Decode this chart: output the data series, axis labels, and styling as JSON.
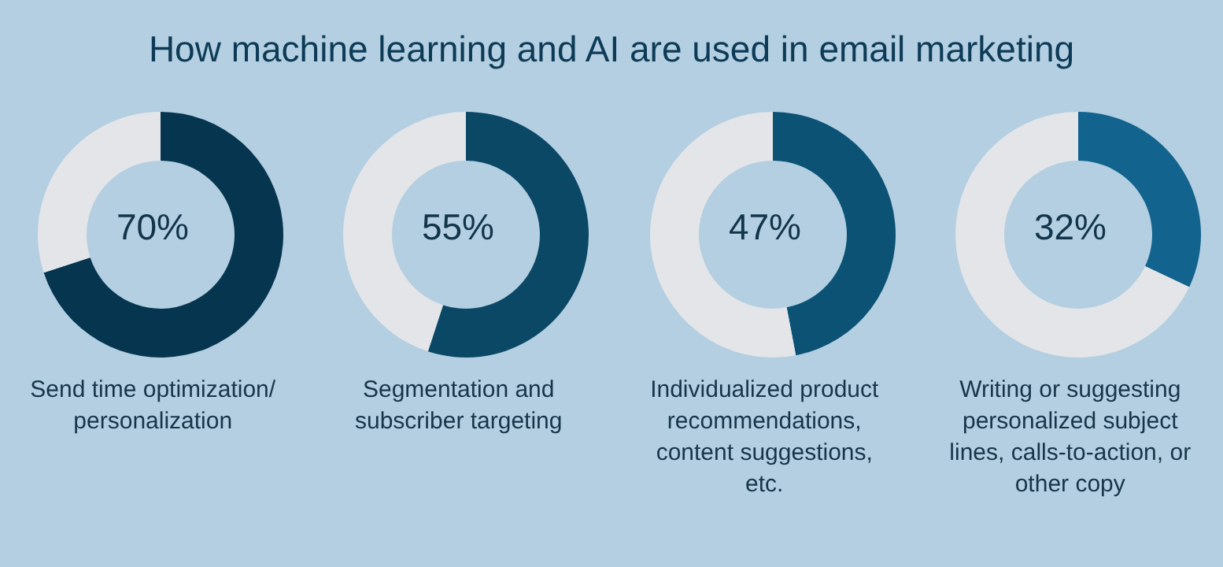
{
  "chart_data": [
    {
      "type": "other",
      "title": "How machine learning and AI are used in email marketing"
    },
    {
      "type": "donut",
      "categories": [
        null,
        null
      ],
      "values": [
        70,
        30
      ],
      "colors": [
        "#06354f",
        "#e3e5e8"
      ],
      "annotations": [
        "70%"
      ],
      "xlabel": "Send time optimization/ personalization"
    },
    {
      "type": "donut",
      "categories": [
        null,
        null
      ],
      "values": [
        55,
        45
      ],
      "colors": [
        "#0a4866",
        "#e3e5e8"
      ],
      "annotations": [
        "55%"
      ],
      "xlabel": "Segmentation and subscriber targeting"
    },
    {
      "type": "donut",
      "categories": [
        null,
        null
      ],
      "values": [
        47,
        53
      ],
      "colors": [
        "#0b5275",
        "#e3e5e8"
      ],
      "annotations": [
        "47%"
      ],
      "xlabel": "Individualized product recommendations, content suggestions, etc."
    },
    {
      "type": "donut",
      "categories": [
        null,
        null
      ],
      "values": [
        32,
        68
      ],
      "colors": [
        "#12638e",
        "#e3e5e8"
      ],
      "annotations": [
        "32%"
      ],
      "xlabel": "Writing or suggesting personalized subject lines, calls-to-action, or other copy"
    }
  ]
}
